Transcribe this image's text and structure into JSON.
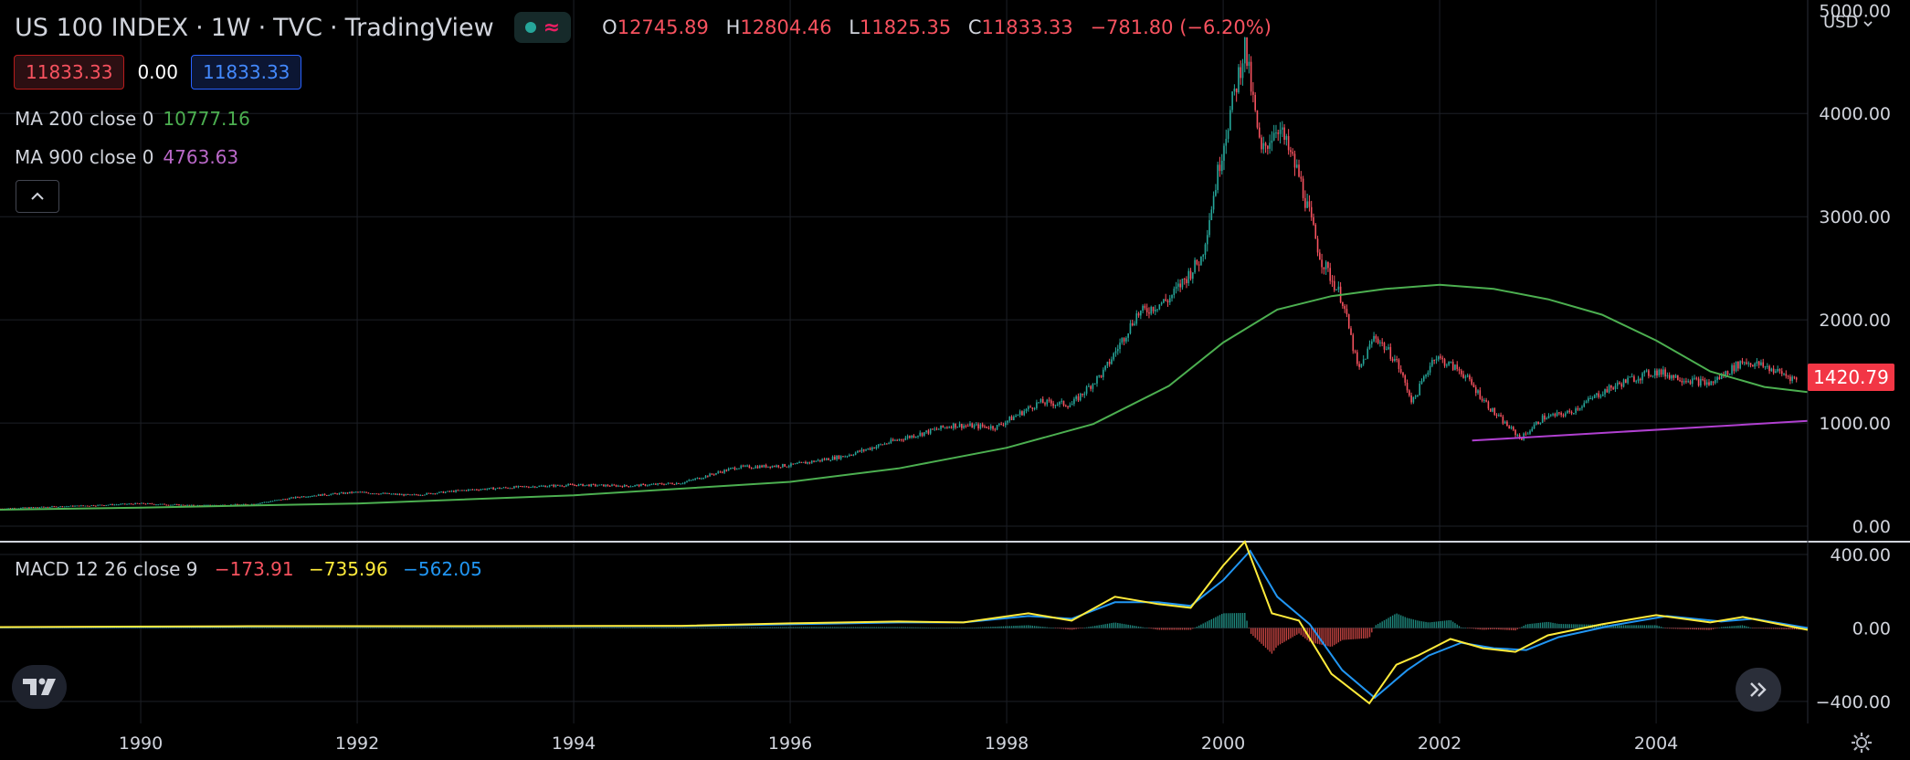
{
  "header": {
    "symbol": "US 100 INDEX",
    "sep1": "·",
    "interval": "1W",
    "sep2": "·",
    "source": "TVC",
    "sep3": "·",
    "platform": "TradingView",
    "status_wave": "≈",
    "ohlc": {
      "o_label": "O",
      "o": "12745.89",
      "h_label": "H",
      "h": "12804.46",
      "l_label": "L",
      "l": "11825.35",
      "c_label": "C",
      "c": "11833.33",
      "change": "−781.80 (−6.20%)"
    }
  },
  "price_boxes": {
    "bid": "11833.33",
    "spread": "0.00",
    "ask": "11833.33"
  },
  "indicators": {
    "ma200": {
      "label": "MA 200 close 0",
      "value": "10777.16",
      "color": "#4caf50"
    },
    "ma900": {
      "label": "MA 900 close 0",
      "value": "4763.63",
      "color": "#9c27b0"
    }
  },
  "macd": {
    "label": "MACD 12 26 close 9",
    "histogram": "−173.91",
    "macd_line": "−735.96",
    "signal": "−562.05",
    "colors": {
      "histogram": "#f7525f",
      "macd_line": "#ffeb3b",
      "signal": "#2196f3"
    }
  },
  "currency": "USD",
  "last_price": "1420.79",
  "colors": {
    "up": "#26a69a",
    "down": "#f7525f",
    "ma200": "#4caf50",
    "ma900": "#9c27b0",
    "last_badge": "#f23645"
  },
  "icons": {
    "collapse": "chevron-up-icon",
    "logo": "tradingview-logo-icon",
    "scroll": "double-chevron-right-icon",
    "settings": "gear-icon"
  },
  "chart_data": [
    {
      "type": "candlestick",
      "title": "US 100 INDEX · 1W · TVC",
      "yticks": [
        "0.00",
        "1000.00",
        "2000.00",
        "3000.00",
        "4000.00"
      ],
      "y_top_tick_partial": "5000.00",
      "ylim": [
        -150,
        5100
      ],
      "xticks": [
        "1990",
        "1992",
        "1994",
        "1996",
        "1998",
        "2000",
        "2002",
        "2004"
      ],
      "xlim": [
        1988.7,
        2005.4
      ],
      "close_series": [
        [
          1988.7,
          170
        ],
        [
          1989.5,
          200
        ],
        [
          1990.0,
          220
        ],
        [
          1990.5,
          200
        ],
        [
          1991.0,
          210
        ],
        [
          1991.5,
          290
        ],
        [
          1992.0,
          330
        ],
        [
          1992.5,
          300
        ],
        [
          1993.0,
          350
        ],
        [
          1993.5,
          380
        ],
        [
          1994.0,
          400
        ],
        [
          1994.5,
          390
        ],
        [
          1995.0,
          420
        ],
        [
          1995.5,
          570
        ],
        [
          1996.0,
          590
        ],
        [
          1996.5,
          680
        ],
        [
          1997.0,
          840
        ],
        [
          1997.5,
          980
        ],
        [
          1997.9,
          960
        ],
        [
          1998.3,
          1200
        ],
        [
          1998.6,
          1180
        ],
        [
          1998.9,
          1500
        ],
        [
          1999.2,
          2050
        ],
        [
          1999.5,
          2200
        ],
        [
          1999.8,
          2600
        ],
        [
          2000.0,
          3700
        ],
        [
          2000.2,
          4650
        ],
        [
          2000.35,
          3600
        ],
        [
          2000.5,
          3900
        ],
        [
          2000.7,
          3400
        ],
        [
          2000.9,
          2600
        ],
        [
          2001.1,
          2200
        ],
        [
          2001.25,
          1500
        ],
        [
          2001.4,
          1850
        ],
        [
          2001.6,
          1600
        ],
        [
          2001.75,
          1200
        ],
        [
          2001.95,
          1650
        ],
        [
          2002.2,
          1500
        ],
        [
          2002.5,
          1100
        ],
        [
          2002.75,
          850
        ],
        [
          2002.95,
          1050
        ],
        [
          2003.2,
          1100
        ],
        [
          2003.5,
          1300
        ],
        [
          2003.75,
          1420
        ],
        [
          2004.0,
          1500
        ],
        [
          2004.25,
          1430
        ],
        [
          2004.5,
          1380
        ],
        [
          2004.8,
          1600
        ],
        [
          2005.0,
          1550
        ],
        [
          2005.3,
          1420
        ]
      ],
      "ma200_series": [
        [
          1988.7,
          160
        ],
        [
          1990.0,
          180
        ],
        [
          1992.0,
          220
        ],
        [
          1994.0,
          300
        ],
        [
          1996.0,
          430
        ],
        [
          1997.0,
          560
        ],
        [
          1998.0,
          760
        ],
        [
          1998.8,
          990
        ],
        [
          1999.5,
          1360
        ],
        [
          2000.0,
          1780
        ],
        [
          2000.5,
          2100
        ],
        [
          2001.0,
          2230
        ],
        [
          2001.5,
          2300
        ],
        [
          2002.0,
          2340
        ],
        [
          2002.5,
          2300
        ],
        [
          2003.0,
          2200
        ],
        [
          2003.5,
          2050
        ],
        [
          2004.0,
          1800
        ],
        [
          2004.5,
          1500
        ],
        [
          2005.0,
          1350
        ],
        [
          2005.4,
          1300
        ]
      ],
      "ma900_series": [
        [
          2002.3,
          830
        ],
        [
          2005.4,
          1020
        ]
      ]
    },
    {
      "type": "line",
      "title": "MACD 12 26 close 9",
      "yticks": [
        "400.00",
        "0.00",
        "−400.00"
      ],
      "ylim": [
        -520,
        460
      ],
      "xlim": [
        1988.7,
        2005.4
      ],
      "macd_series": [
        [
          1988.7,
          5
        ],
        [
          1991.0,
          10
        ],
        [
          1993.0,
          10
        ],
        [
          1995.0,
          12
        ],
        [
          1996.0,
          25
        ],
        [
          1997.0,
          35
        ],
        [
          1997.6,
          30
        ],
        [
          1998.2,
          80
        ],
        [
          1998.6,
          40
        ],
        [
          1999.0,
          170
        ],
        [
          1999.4,
          130
        ],
        [
          1999.7,
          110
        ],
        [
          2000.0,
          340
        ],
        [
          2000.2,
          470
        ],
        [
          2000.45,
          80
        ],
        [
          2000.7,
          40
        ],
        [
          2001.0,
          -250
        ],
        [
          2001.35,
          -410
        ],
        [
          2001.6,
          -200
        ],
        [
          2001.8,
          -150
        ],
        [
          2002.1,
          -60
        ],
        [
          2002.4,
          -110
        ],
        [
          2002.7,
          -130
        ],
        [
          2003.0,
          -40
        ],
        [
          2003.5,
          20
        ],
        [
          2004.0,
          70
        ],
        [
          2004.5,
          30
        ],
        [
          2004.8,
          60
        ],
        [
          2005.4,
          -10
        ]
      ],
      "signal_series": [
        [
          1988.7,
          4
        ],
        [
          1991.0,
          8
        ],
        [
          1993.0,
          9
        ],
        [
          1995.0,
          10
        ],
        [
          1996.0,
          20
        ],
        [
          1997.0,
          30
        ],
        [
          1997.6,
          30
        ],
        [
          1998.2,
          65
        ],
        [
          1998.6,
          50
        ],
        [
          1999.0,
          140
        ],
        [
          1999.4,
          140
        ],
        [
          1999.7,
          120
        ],
        [
          2000.0,
          260
        ],
        [
          2000.25,
          420
        ],
        [
          2000.5,
          170
        ],
        [
          2000.8,
          20
        ],
        [
          2001.1,
          -230
        ],
        [
          2001.4,
          -380
        ],
        [
          2001.7,
          -230
        ],
        [
          2001.9,
          -150
        ],
        [
          2002.2,
          -80
        ],
        [
          2002.5,
          -110
        ],
        [
          2002.8,
          -120
        ],
        [
          2003.1,
          -50
        ],
        [
          2003.6,
          15
        ],
        [
          2004.1,
          65
        ],
        [
          2004.6,
          35
        ],
        [
          2004.9,
          50
        ],
        [
          2005.4,
          0
        ]
      ]
    }
  ]
}
